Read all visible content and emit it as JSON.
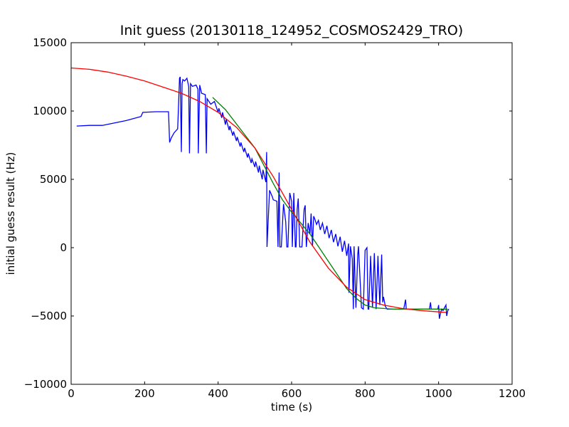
{
  "chart_data": {
    "type": "line",
    "title": "Init guess (20130118_124952_COSMOS2429_TRO)",
    "xlabel": "time (s)",
    "ylabel": "initial guess result (Hz)",
    "xlim": [
      0,
      1200
    ],
    "ylim": [
      -10000,
      15000
    ],
    "xticks": [
      0,
      200,
      400,
      600,
      800,
      1000,
      1200
    ],
    "yticks": [
      -10000,
      -5000,
      0,
      5000,
      10000,
      15000
    ],
    "xtick_labels": [
      "0",
      "200",
      "400",
      "600",
      "800",
      "1000",
      "1200"
    ],
    "ytick_labels": [
      "−10000",
      "−5000",
      "0",
      "5000",
      "10000",
      "15000"
    ],
    "grid": false,
    "legend": "none",
    "series": [
      {
        "color": "#0000ff",
        "x": [
          15,
          50,
          85,
          150,
          190,
          195,
          230,
          265,
          268,
          272,
          280,
          290,
          295,
          297,
          300,
          302,
          304,
          309,
          315,
          320,
          322,
          325,
          330,
          340,
          345,
          346,
          350,
          355,
          365,
          368,
          370,
          380,
          390,
          400,
          402,
          410,
          412,
          420,
          422,
          430,
          432,
          440,
          442,
          450,
          452,
          460,
          462,
          470,
          472,
          480,
          482,
          490,
          492,
          500,
          502,
          510,
          512,
          520,
          522,
          530,
          532,
          533,
          540,
          548,
          550,
          560,
          563,
          566,
          568,
          572,
          578,
          584,
          587,
          590,
          595,
          600,
          602,
          606,
          610,
          612,
          615,
          618,
          622,
          628,
          634,
          637,
          640,
          645,
          650,
          653,
          657,
          660,
          663,
          668,
          673,
          678,
          684,
          690,
          696,
          702,
          708,
          714,
          720,
          726,
          732,
          738,
          744,
          750,
          755,
          756,
          760,
          765,
          768,
          770,
          775,
          780,
          782,
          790,
          795,
          800,
          805,
          808,
          810,
          815,
          820,
          825,
          830,
          835,
          840,
          845,
          848,
          850,
          855,
          860,
          880,
          905,
          910,
          912,
          920,
          940,
          960,
          975,
          978,
          980,
          998,
          1000,
          1002,
          1008,
          1012,
          1020,
          1022,
          1025,
          1028
        ],
        "y": [
          8900,
          8950,
          8950,
          9300,
          9600,
          9900,
          9950,
          9950,
          7700,
          8000,
          8400,
          8700,
          12400,
          12500,
          7000,
          12000,
          12300,
          12200,
          12400,
          11800,
          6900,
          12000,
          11800,
          11900,
          11600,
          6900,
          11900,
          11300,
          11200,
          6900,
          10900,
          10500,
          10700,
          9900,
          10200,
          9500,
          9900,
          9000,
          9400,
          8600,
          8900,
          8200,
          8500,
          7800,
          8100,
          7400,
          7700,
          7000,
          7300,
          6600,
          6900,
          6200,
          6500,
          5900,
          6300,
          5500,
          6000,
          5000,
          5700,
          4800,
          7000,
          50,
          4200,
          3700,
          3500,
          3400,
          50,
          5500,
          50,
          50,
          3200,
          1900,
          50,
          50,
          4000,
          3400,
          50,
          4000,
          50,
          50,
          2800,
          3600,
          50,
          50,
          2800,
          3100,
          50,
          1800,
          1000,
          2500,
          100,
          2300,
          2100,
          1700,
          2000,
          1300,
          1800,
          1000,
          1600,
          700,
          1300,
          400,
          1000,
          100,
          800,
          -300,
          500,
          -600,
          300,
          -3300,
          100,
          -800,
          -4500,
          100,
          -4400,
          -500,
          100,
          -4400,
          -4500,
          -200,
          0,
          -4500,
          -4500,
          -600,
          -4400,
          -400,
          -4500,
          -600,
          -4200,
          -500,
          -4000,
          -3600,
          -4300,
          -4500,
          -4500,
          -4500,
          -3800,
          -4500,
          -4500,
          -4500,
          -4500,
          -4500,
          -4000,
          -4500,
          -4500,
          -4200,
          -5200,
          -4500,
          -4600,
          -4200,
          -5000,
          -4600,
          -4500
        ]
      },
      {
        "color": "#008000",
        "x": [
          385,
          420,
          460,
          500,
          525,
          550,
          575,
          600,
          625,
          650,
          675,
          700,
          725,
          750,
          775,
          800,
          825,
          850,
          875,
          900,
          925,
          950,
          975,
          1000,
          1025
        ],
        "y": [
          11000,
          10100,
          8700,
          7300,
          6000,
          4700,
          3500,
          2600,
          1800,
          1000,
          0,
          -1000,
          -2000,
          -3000,
          -3700,
          -4200,
          -4400,
          -4450,
          -4500,
          -4500,
          -4500,
          -4500,
          -4500,
          -4500,
          -4500
        ]
      },
      {
        "color": "#ff0000",
        "x": [
          0,
          50,
          100,
          150,
          200,
          250,
          300,
          350,
          400,
          450,
          500,
          550,
          600,
          650,
          700,
          750,
          800,
          850,
          900,
          950,
          1000,
          1020
        ],
        "y": [
          13150,
          13050,
          12850,
          12550,
          12200,
          11750,
          11300,
          10700,
          9900,
          8800,
          7300,
          5200,
          2800,
          400,
          -1500,
          -2900,
          -3800,
          -4200,
          -4450,
          -4600,
          -4700,
          -4750
        ]
      }
    ]
  }
}
